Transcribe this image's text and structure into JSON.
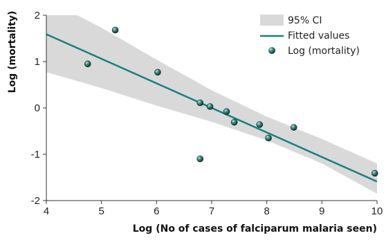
{
  "chart_data": {
    "type": "scatter",
    "xlabel": "Log (No of cases of falciparum malaria seen)",
    "ylabel": "Log (mortality)",
    "xlim": [
      4,
      10
    ],
    "ylim": [
      -2,
      2
    ],
    "x_ticks": [
      4,
      5,
      6,
      7,
      8,
      9,
      10
    ],
    "y_ticks": [
      2,
      1,
      0,
      -1,
      -2
    ],
    "grid": false,
    "legend_position": "top-right",
    "legend": [
      "95% CI",
      "Fitted values",
      "Log (mortality)"
    ],
    "points": [
      {
        "x": 4.75,
        "y": 0.95
      },
      {
        "x": 5.25,
        "y": 1.68
      },
      {
        "x": 6.02,
        "y": 0.77
      },
      {
        "x": 6.79,
        "y": 0.11
      },
      {
        "x": 6.97,
        "y": 0.03
      },
      {
        "x": 7.27,
        "y": -0.08
      },
      {
        "x": 7.41,
        "y": -0.31
      },
      {
        "x": 7.87,
        "y": -0.36
      },
      {
        "x": 8.03,
        "y": -0.65
      },
      {
        "x": 8.49,
        "y": -0.42
      },
      {
        "x": 6.79,
        "y": -1.1
      },
      {
        "x": 9.96,
        "y": -1.41
      }
    ],
    "fitted_line": {
      "x": [
        4,
        10
      ],
      "y": [
        1.59,
        -1.59
      ]
    },
    "ci_band": {
      "x": [
        4,
        5,
        6,
        7,
        8,
        9,
        10
      ],
      "lower": [
        0.77,
        0.43,
        0.05,
        -0.3,
        -0.7,
        -1.2,
        -1.85
      ],
      "upper": [
        2.35,
        1.73,
        1.04,
        0.38,
        -0.19,
        -0.67,
        -1.2
      ]
    },
    "colors": {
      "ci_fill": "#d9d9d9",
      "line": "#17807e",
      "point": "#1e5048",
      "point_highlight": "#8ecfc6"
    }
  }
}
